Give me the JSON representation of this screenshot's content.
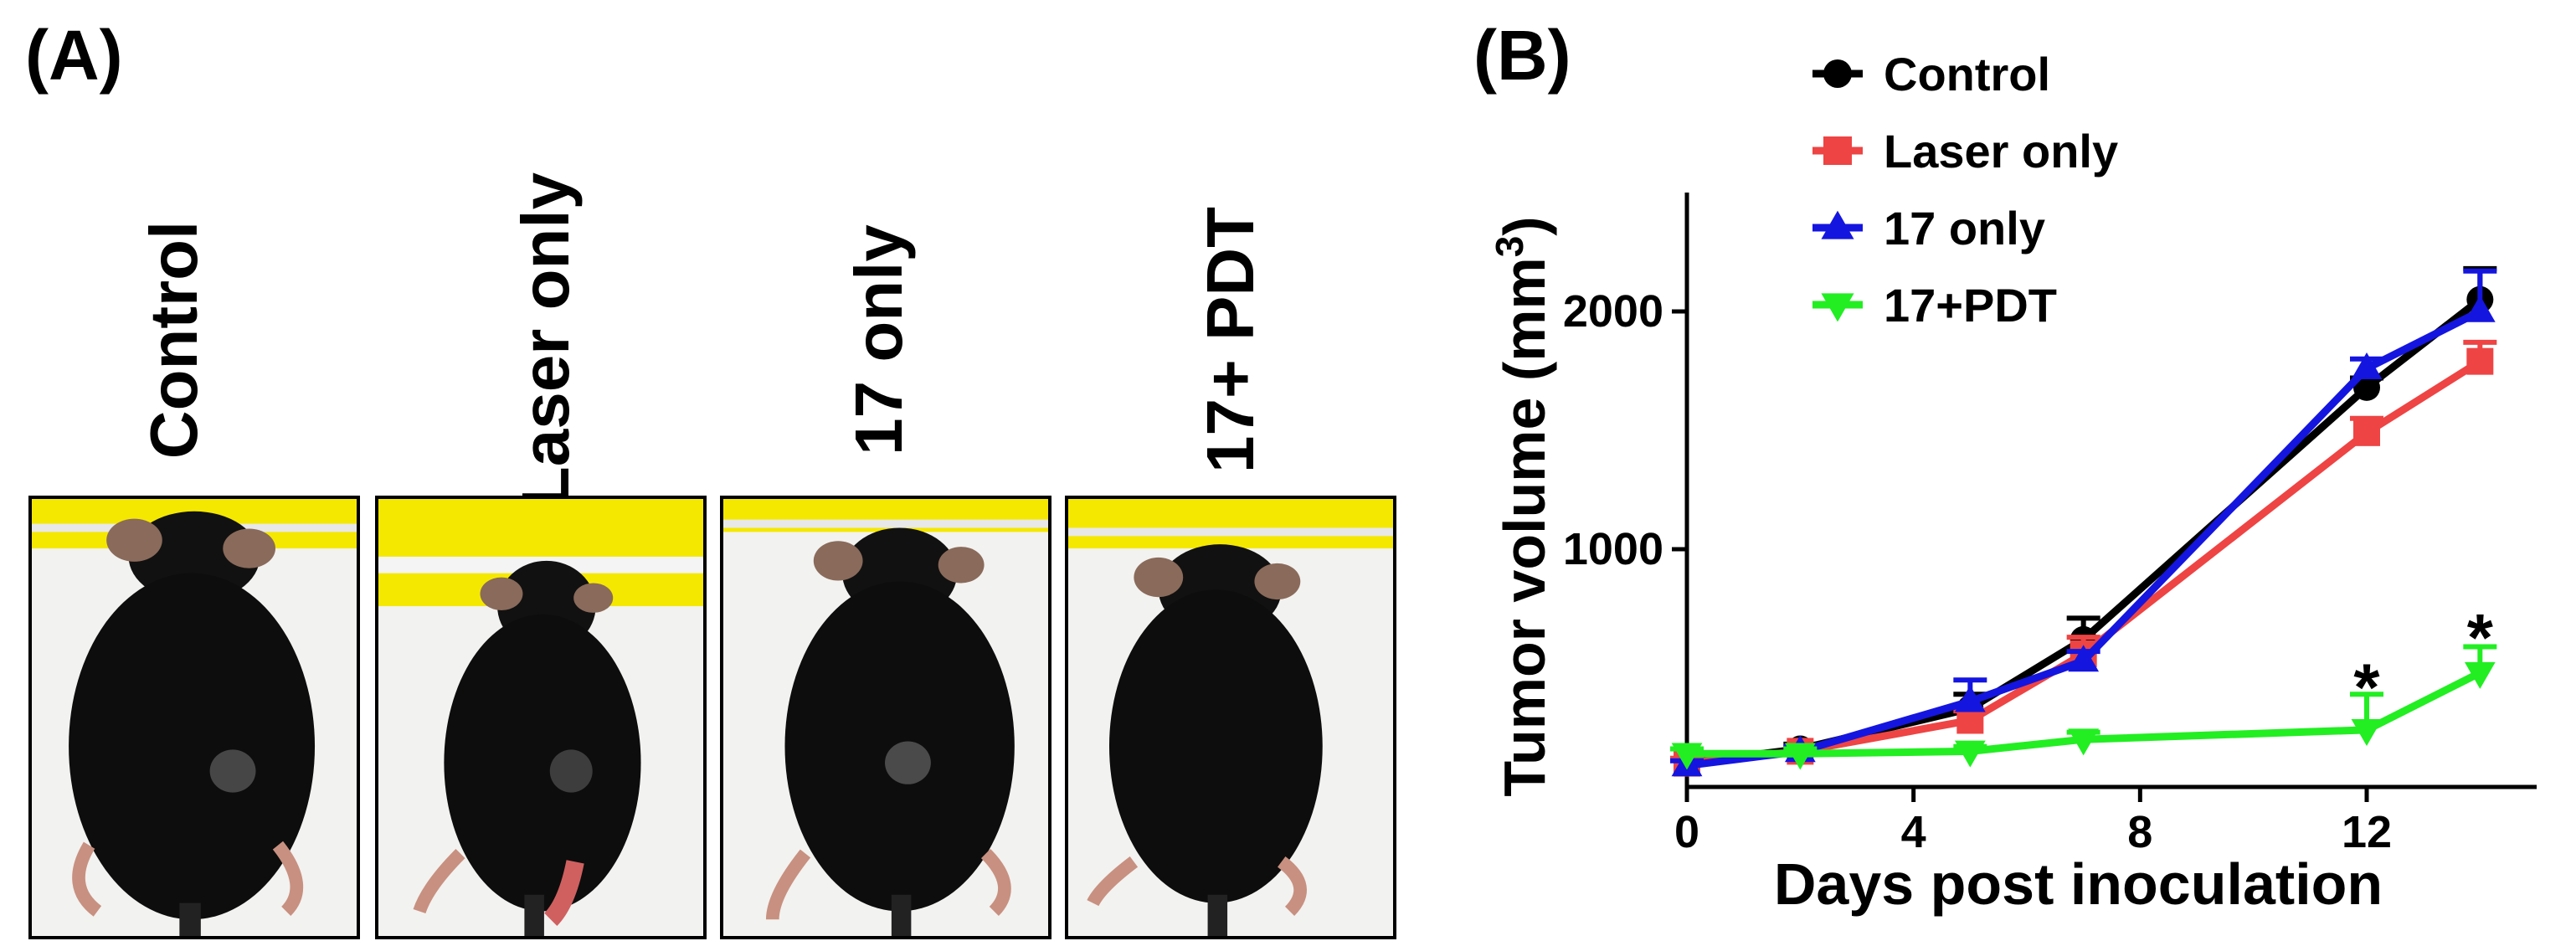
{
  "panel_a": {
    "label": "(A)",
    "photos": [
      {
        "label": "Control"
      },
      {
        "label": "Laser only"
      },
      {
        "label": "17 only"
      },
      {
        "label": "17+ PDT"
      }
    ]
  },
  "panel_b": {
    "label": "(B)"
  },
  "chart_data": {
    "type": "line",
    "xlabel": "Days post inoculation",
    "ylabel": "Tumor volume (mm",
    "ylabel_superscript": "3",
    "ylabel_suffix": ")",
    "xlim": [
      0,
      15
    ],
    "ylim": [
      0,
      2500
    ],
    "xticks": [
      0,
      4,
      8,
      12
    ],
    "yticks": [
      1000,
      2000
    ],
    "grid": false,
    "legend_position": "top-left",
    "series": [
      {
        "name": "Control",
        "color": "#000000",
        "marker": "circle",
        "x": [
          0,
          2,
          5,
          7,
          12,
          14
        ],
        "y": [
          100,
          160,
          330,
          620,
          1680,
          2050
        ],
        "err": [
          20,
          20,
          60,
          90,
          40,
          130
        ]
      },
      {
        "name": "Laser only",
        "color": "#ee4444",
        "marker": "square",
        "x": [
          0,
          2,
          5,
          7,
          12,
          14
        ],
        "y": [
          100,
          150,
          280,
          560,
          1490,
          1790
        ],
        "err": [
          20,
          20,
          40,
          70,
          60,
          80
        ]
      },
      {
        "name": "17 only",
        "color": "#1515e0",
        "marker": "triangle-up",
        "x": [
          0,
          2,
          5,
          7,
          12,
          14
        ],
        "y": [
          90,
          150,
          360,
          530,
          1760,
          2000
        ],
        "err": [
          20,
          20,
          90,
          40,
          40,
          170
        ]
      },
      {
        "name": "17+PDT",
        "color": "#22ee22",
        "marker": "triangle-down",
        "x": [
          0,
          2,
          5,
          7,
          12,
          14
        ],
        "y": [
          140,
          140,
          150,
          200,
          240,
          480
        ],
        "err": [
          20,
          20,
          20,
          30,
          150,
          110
        ]
      }
    ],
    "annotations": [
      {
        "text": "*",
        "x": 12,
        "y": 400
      },
      {
        "text": "*",
        "x": 14,
        "y": 610
      }
    ]
  }
}
